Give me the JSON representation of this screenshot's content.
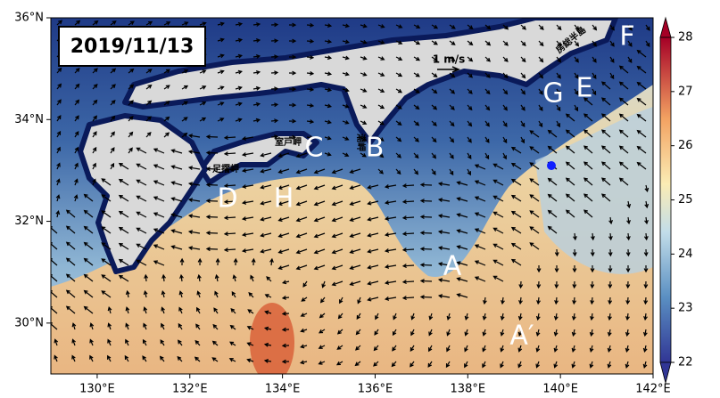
{
  "date": "2019/11/13",
  "scale_label": "1 m/s",
  "map": {
    "xlim": [
      129,
      142
    ],
    "ylim": [
      29,
      36
    ],
    "xticks": [
      {
        "value": 130,
        "label": "130°E"
      },
      {
        "value": 132,
        "label": "132°E"
      },
      {
        "value": 134,
        "label": "134°E"
      },
      {
        "value": 136,
        "label": "136°E"
      },
      {
        "value": 138,
        "label": "138°E"
      },
      {
        "value": 140,
        "label": "140°E"
      },
      {
        "value": 142,
        "label": "142°E"
      }
    ],
    "yticks": [
      {
        "value": 30,
        "label": "30°N"
      },
      {
        "value": 32,
        "label": "32°N"
      },
      {
        "value": 34,
        "label": "34°N"
      },
      {
        "value": 36,
        "label": "36°N"
      }
    ]
  },
  "colorbar": {
    "range": [
      22,
      28
    ],
    "ticks": [
      22,
      23,
      24,
      25,
      26,
      27,
      28
    ]
  },
  "sites": [
    "A",
    "A′",
    "B",
    "C",
    "D",
    "E",
    "F",
    "G",
    "H"
  ],
  "place_names": [
    "室戸岬",
    "足摺岬",
    "潮岬",
    "房総半島"
  ]
}
